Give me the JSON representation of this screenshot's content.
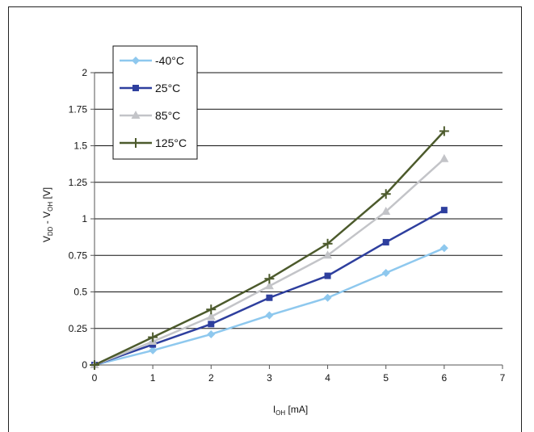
{
  "chart_data": {
    "type": "line",
    "xlabel_main": "I",
    "xlabel_sub": "OH",
    "xlabel_unit": " [mA]",
    "ylabel_parts": [
      "V",
      "DD",
      " - V",
      "OH",
      " [V]"
    ],
    "xlim": [
      0,
      7
    ],
    "ylim": [
      0,
      2
    ],
    "x_ticks": [
      "0",
      "1",
      "2",
      "3",
      "4",
      "5",
      "6",
      "7"
    ],
    "y_ticks": [
      "0",
      "0.25",
      "0.5",
      "0.75",
      "1",
      "1.25",
      "1.5",
      "1.75",
      "2"
    ],
    "grid": "horizontal",
    "legend_position": "top-left",
    "x": [
      0,
      1,
      2,
      3,
      4,
      5,
      6
    ],
    "series": [
      {
        "name": "-40°C",
        "color": "#8ec8ee",
        "marker": "diamond",
        "values": [
          0,
          0.1,
          0.21,
          0.34,
          0.46,
          0.63,
          0.8
        ]
      },
      {
        "name": "25°C",
        "color": "#2e3f9e",
        "marker": "square",
        "values": [
          0,
          0.14,
          0.28,
          0.46,
          0.61,
          0.84,
          1.06
        ]
      },
      {
        "name": "85°C",
        "color": "#c3c4c8",
        "marker": "triangle",
        "values": [
          0,
          0.16,
          0.33,
          0.54,
          0.75,
          1.05,
          1.41
        ]
      },
      {
        "name": "125°C",
        "color": "#4c5a2c",
        "marker": "plus",
        "values": [
          0,
          0.19,
          0.38,
          0.59,
          0.83,
          1.17,
          1.6
        ]
      }
    ]
  }
}
